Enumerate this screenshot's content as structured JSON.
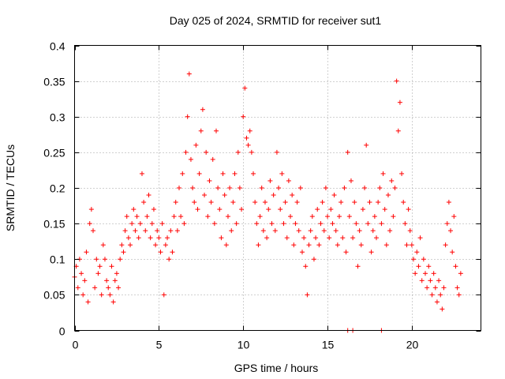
{
  "chart_data": {
    "type": "scatter",
    "title": "Day 025 of 2024, SRMTID for receiver sut1",
    "xlabel": "GPS time / hours",
    "ylabel": "SRMTID / TECUs",
    "xlim": [
      0,
      24.1
    ],
    "ylim": [
      0,
      0.4
    ],
    "xticks": [
      0,
      5,
      10,
      15,
      20
    ],
    "xtick_labels": [
      "0",
      "5",
      "10",
      "15",
      "20"
    ],
    "yticks": [
      0,
      0.05,
      0.1,
      0.15,
      0.2,
      0.25,
      0.3,
      0.35,
      0.4
    ],
    "ytick_labels": [
      "0",
      "0.05",
      "0.1",
      "0.15",
      "0.2",
      "0.25",
      "0.3",
      "0.35",
      "0.4"
    ],
    "grid": true,
    "marker": "plus",
    "color": "#ff0000",
    "series": [
      {
        "name": "SRMTID",
        "points": [
          [
            0.0,
            0.075
          ],
          [
            0.1,
            0.09
          ],
          [
            0.2,
            0.06
          ],
          [
            0.3,
            0.1
          ],
          [
            0.4,
            0.08
          ],
          [
            0.5,
            0.05
          ],
          [
            0.6,
            0.07
          ],
          [
            0.7,
            0.11
          ],
          [
            0.8,
            0.04
          ],
          [
            0.9,
            0.15
          ],
          [
            1.0,
            0.17
          ],
          [
            1.1,
            0.14
          ],
          [
            1.2,
            0.06
          ],
          [
            1.3,
            0.1
          ],
          [
            1.4,
            0.08
          ],
          [
            1.5,
            0.09
          ],
          [
            1.6,
            0.05
          ],
          [
            1.7,
            0.12
          ],
          [
            1.8,
            0.1
          ],
          [
            1.9,
            0.07
          ],
          [
            2.0,
            0.06
          ],
          [
            2.1,
            0.05
          ],
          [
            2.2,
            0.09
          ],
          [
            2.3,
            0.04
          ],
          [
            2.4,
            0.07
          ],
          [
            2.5,
            0.08
          ],
          [
            2.6,
            0.06
          ],
          [
            2.7,
            0.1
          ],
          [
            2.8,
            0.12
          ],
          [
            2.9,
            0.11
          ],
          [
            3.0,
            0.14
          ],
          [
            3.1,
            0.16
          ],
          [
            3.2,
            0.13
          ],
          [
            3.3,
            0.12
          ],
          [
            3.4,
            0.15
          ],
          [
            3.5,
            0.17
          ],
          [
            3.6,
            0.14
          ],
          [
            3.7,
            0.16
          ],
          [
            3.8,
            0.13
          ],
          [
            3.9,
            0.15
          ],
          [
            4.0,
            0.22
          ],
          [
            4.1,
            0.18
          ],
          [
            4.2,
            0.14
          ],
          [
            4.3,
            0.16
          ],
          [
            4.4,
            0.19
          ],
          [
            4.5,
            0.13
          ],
          [
            4.6,
            0.15
          ],
          [
            4.7,
            0.17
          ],
          [
            4.8,
            0.12
          ],
          [
            4.9,
            0.14
          ],
          [
            5.0,
            0.13
          ],
          [
            5.1,
            0.11
          ],
          [
            5.2,
            0.15
          ],
          [
            5.3,
            0.05
          ],
          [
            5.4,
            0.12
          ],
          [
            5.5,
            0.13
          ],
          [
            5.6,
            0.1
          ],
          [
            5.7,
            0.14
          ],
          [
            5.8,
            0.11
          ],
          [
            5.9,
            0.16
          ],
          [
            6.0,
            0.18
          ],
          [
            6.1,
            0.14
          ],
          [
            6.2,
            0.2
          ],
          [
            6.3,
            0.16
          ],
          [
            6.4,
            0.22
          ],
          [
            6.5,
            0.15
          ],
          [
            6.6,
            0.25
          ],
          [
            6.7,
            0.3
          ],
          [
            6.8,
            0.36
          ],
          [
            6.9,
            0.24
          ],
          [
            7.0,
            0.2
          ],
          [
            7.1,
            0.18
          ],
          [
            7.2,
            0.26
          ],
          [
            7.3,
            0.17
          ],
          [
            7.4,
            0.22
          ],
          [
            7.5,
            0.28
          ],
          [
            7.6,
            0.31
          ],
          [
            7.7,
            0.19
          ],
          [
            7.8,
            0.25
          ],
          [
            7.9,
            0.16
          ],
          [
            8.0,
            0.21
          ],
          [
            8.1,
            0.18
          ],
          [
            8.2,
            0.24
          ],
          [
            8.3,
            0.15
          ],
          [
            8.4,
            0.28
          ],
          [
            8.5,
            0.2
          ],
          [
            8.6,
            0.17
          ],
          [
            8.7,
            0.13
          ],
          [
            8.8,
            0.22
          ],
          [
            8.9,
            0.19
          ],
          [
            9.0,
            0.12
          ],
          [
            9.1,
            0.16
          ],
          [
            9.2,
            0.2
          ],
          [
            9.3,
            0.14
          ],
          [
            9.4,
            0.18
          ],
          [
            9.5,
            0.22
          ],
          [
            9.6,
            0.15
          ],
          [
            9.7,
            0.25
          ],
          [
            9.8,
            0.2
          ],
          [
            9.9,
            0.17
          ],
          [
            10.0,
            0.3
          ],
          [
            10.1,
            0.34
          ],
          [
            10.2,
            0.27
          ],
          [
            10.3,
            0.26
          ],
          [
            10.4,
            0.28
          ],
          [
            10.5,
            0.25
          ],
          [
            10.6,
            0.22
          ],
          [
            10.7,
            0.18
          ],
          [
            10.8,
            0.15
          ],
          [
            10.9,
            0.12
          ],
          [
            11.0,
            0.16
          ],
          [
            11.1,
            0.2
          ],
          [
            11.2,
            0.14
          ],
          [
            11.3,
            0.18
          ],
          [
            11.4,
            0.13
          ],
          [
            11.5,
            0.17
          ],
          [
            11.6,
            0.21
          ],
          [
            11.7,
            0.15
          ],
          [
            11.8,
            0.19
          ],
          [
            11.9,
            0.14
          ],
          [
            12.0,
            0.25
          ],
          [
            12.1,
            0.2
          ],
          [
            12.2,
            0.17
          ],
          [
            12.3,
            0.22
          ],
          [
            12.4,
            0.15
          ],
          [
            12.5,
            0.18
          ],
          [
            12.6,
            0.13
          ],
          [
            12.7,
            0.21
          ],
          [
            12.8,
            0.16
          ],
          [
            12.9,
            0.19
          ],
          [
            13.0,
            0.12
          ],
          [
            13.1,
            0.15
          ],
          [
            13.2,
            0.18
          ],
          [
            13.3,
            0.14
          ],
          [
            13.4,
            0.2
          ],
          [
            13.5,
            0.11
          ],
          [
            13.6,
            0.13
          ],
          [
            13.7,
            0.09
          ],
          [
            13.8,
            0.05
          ],
          [
            13.9,
            0.12
          ],
          [
            14.0,
            0.14
          ],
          [
            14.1,
            0.16
          ],
          [
            14.2,
            0.1
          ],
          [
            14.3,
            0.13
          ],
          [
            14.4,
            0.17
          ],
          [
            14.5,
            0.12
          ],
          [
            14.6,
            0.15
          ],
          [
            14.7,
            0.18
          ],
          [
            14.8,
            0.14
          ],
          [
            14.9,
            0.2
          ],
          [
            15.0,
            0.16
          ],
          [
            15.1,
            0.13
          ],
          [
            15.2,
            0.17
          ],
          [
            15.3,
            0.15
          ],
          [
            15.4,
            0.19
          ],
          [
            15.5,
            0.14
          ],
          [
            15.6,
            0.12
          ],
          [
            15.7,
            0.16
          ],
          [
            15.8,
            0.18
          ],
          [
            15.9,
            0.13
          ],
          [
            16.0,
            0.2
          ],
          [
            16.1,
            0.11
          ],
          [
            16.2,
            0.25
          ],
          [
            16.3,
            0.16
          ],
          [
            16.4,
            0.21
          ],
          [
            16.5,
            0.13
          ],
          [
            16.6,
            0.18
          ],
          [
            16.7,
            0.15
          ],
          [
            16.8,
            0.09
          ],
          [
            16.9,
            0.14
          ],
          [
            17.0,
            0.12
          ],
          [
            17.1,
            0.17
          ],
          [
            17.2,
            0.2
          ],
          [
            17.3,
            0.26
          ],
          [
            17.4,
            0.15
          ],
          [
            17.5,
            0.18
          ],
          [
            17.6,
            0.11
          ],
          [
            17.7,
            0.14
          ],
          [
            17.8,
            0.16
          ],
          [
            17.9,
            0.13
          ],
          [
            18.0,
            0.18
          ],
          [
            18.1,
            0.2
          ],
          [
            18.2,
            0.15
          ],
          [
            18.3,
            0.22
          ],
          [
            18.4,
            0.17
          ],
          [
            18.5,
            0.12
          ],
          [
            18.6,
            0.19
          ],
          [
            18.7,
            0.14
          ],
          [
            18.8,
            0.21
          ],
          [
            18.9,
            0.16
          ],
          [
            19.0,
            0.2
          ],
          [
            19.1,
            0.35
          ],
          [
            19.2,
            0.28
          ],
          [
            19.3,
            0.32
          ],
          [
            19.4,
            0.22
          ],
          [
            19.5,
            0.18
          ],
          [
            19.6,
            0.15
          ],
          [
            19.7,
            0.12
          ],
          [
            19.8,
            0.17
          ],
          [
            19.9,
            0.14
          ],
          [
            20.0,
            0.12
          ],
          [
            20.1,
            0.1
          ],
          [
            20.2,
            0.08
          ],
          [
            20.3,
            0.11
          ],
          [
            20.4,
            0.09
          ],
          [
            20.5,
            0.13
          ],
          [
            20.6,
            0.07
          ],
          [
            20.7,
            0.1
          ],
          [
            20.8,
            0.08
          ],
          [
            20.9,
            0.06
          ],
          [
            21.0,
            0.09
          ],
          [
            21.1,
            0.07
          ],
          [
            21.2,
            0.05
          ],
          [
            21.3,
            0.08
          ],
          [
            21.4,
            0.06
          ],
          [
            21.5,
            0.04
          ],
          [
            21.6,
            0.07
          ],
          [
            21.7,
            0.05
          ],
          [
            21.8,
            0.03
          ],
          [
            21.9,
            0.06
          ],
          [
            22.0,
            0.12
          ],
          [
            22.1,
            0.15
          ],
          [
            22.2,
            0.18
          ],
          [
            22.3,
            0.14
          ],
          [
            22.4,
            0.11
          ],
          [
            22.5,
            0.16
          ],
          [
            22.6,
            0.09
          ],
          [
            22.7,
            0.06
          ],
          [
            22.8,
            0.05
          ],
          [
            22.9,
            0.08
          ],
          [
            16.2,
            0.0
          ],
          [
            16.5,
            0.0
          ],
          [
            18.2,
            0.0
          ]
        ]
      }
    ]
  }
}
